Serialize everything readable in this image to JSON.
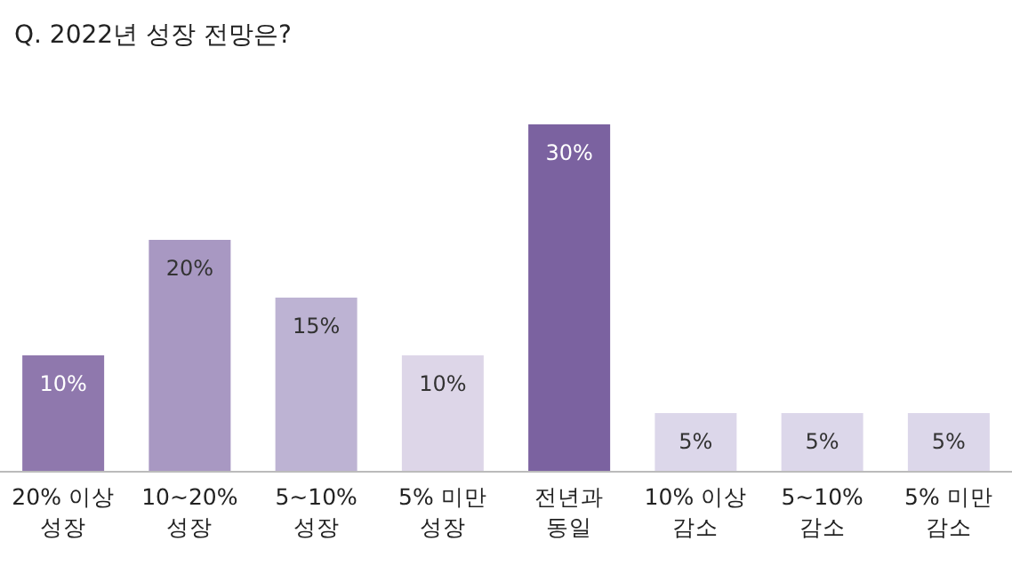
{
  "chart_data": {
    "type": "bar",
    "title": "Q. 2022년 성장 전망은?",
    "categories": [
      "20% 이상\n성장",
      "10~20%\n성장",
      "5~10%\n성장",
      "5% 미만\n성장",
      "전년과\n동일",
      "10% 이상\n감소",
      "5~10%\n감소",
      "5% 미만\n감소"
    ],
    "values": [
      10,
      20,
      15,
      10,
      30,
      5,
      5,
      5
    ],
    "value_labels": [
      "10%",
      "20%",
      "15%",
      "10%",
      "30%",
      "5%",
      "5%",
      "5%"
    ],
    "colors": [
      "#8f78ad",
      "#a898c2",
      "#bdb3d3",
      "#ddd6e8",
      "#7b62a0",
      "#dcd7ea",
      "#dcd7ea",
      "#dcd7ea"
    ]
  }
}
